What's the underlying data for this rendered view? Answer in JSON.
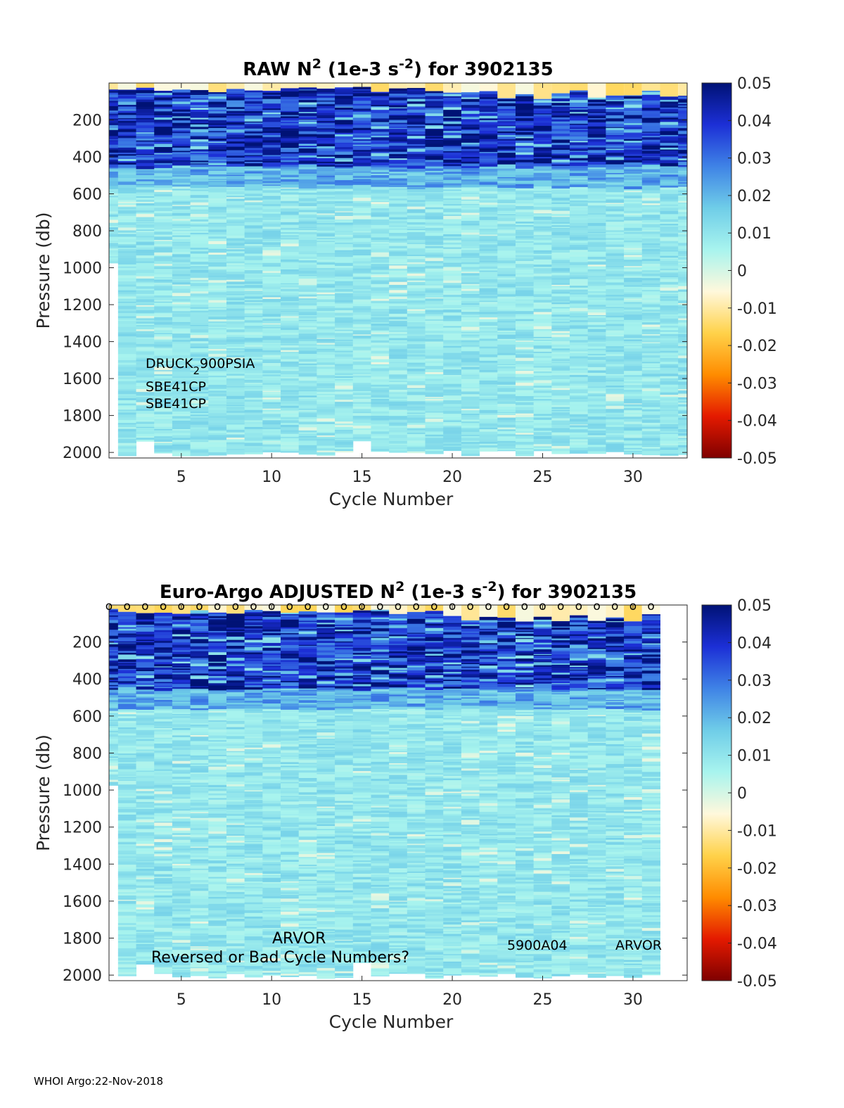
{
  "footer": "WHOI Argo:22-Nov-2018",
  "colormap": {
    "name": "jet-diverging",
    "stops": [
      "#7f0000",
      "#e41a00",
      "#ff8c00",
      "#ffd24a",
      "#fff8dc",
      "#a8f4ee",
      "#6fcde8",
      "#3f83e6",
      "#1c2fd6",
      "#001275"
    ]
  },
  "chart_data": [
    {
      "type": "heatmap",
      "id": "raw",
      "title_prefix": "RAW N",
      "title_sup": "2",
      "title_mid": " (1e-3 s",
      "title_sup2": "-2",
      "title_suffix": ") for 3902135",
      "xlabel": "Cycle Number",
      "ylabel": "Pressure (db)",
      "xlim": [
        1,
        33
      ],
      "ylim": [
        2030,
        0
      ],
      "xticks": [
        "5",
        "10",
        "15",
        "20",
        "25",
        "30"
      ],
      "yticks": [
        "200",
        "400",
        "600",
        "800",
        "1000",
        "1200",
        "1400",
        "1600",
        "1800",
        "2000"
      ],
      "cycles_last": 33,
      "colorbar": {
        "min": -0.05,
        "max": 0.05,
        "ticks": [
          "0.05",
          "0.04",
          "0.03",
          "0.02",
          "0.01",
          "0",
          "-0.01",
          "-0.02",
          "-0.03",
          "-0.04",
          "-0.05"
        ]
      },
      "annotations": [
        {
          "text": "DRUCK",
          "sub": "2",
          "after": "900PSIA"
        },
        {
          "text": "SBE41CP"
        },
        {
          "text": "SBE41CP"
        }
      ],
      "markers": []
    },
    {
      "type": "heatmap",
      "id": "adjusted",
      "title_prefix": "Euro-Argo  ADJUSTED N",
      "title_sup": "2",
      "title_mid": " (1e-3 s",
      "title_sup2": "-2",
      "title_suffix": ") for 3902135",
      "xlabel": "Cycle Number",
      "ylabel": "Pressure (db)",
      "xlim": [
        1,
        33
      ],
      "ylim": [
        2030,
        0
      ],
      "xticks": [
        "5",
        "10",
        "15",
        "20",
        "25",
        "30"
      ],
      "yticks": [
        "200",
        "400",
        "600",
        "800",
        "1000",
        "1200",
        "1400",
        "1600",
        "1800",
        "2000"
      ],
      "cycles_last": 31,
      "colorbar": {
        "min": -0.05,
        "max": 0.05,
        "ticks": [
          "0.05",
          "0.04",
          "0.03",
          "0.02",
          "0.01",
          "0",
          "-0.01",
          "-0.02",
          "-0.03",
          "-0.04",
          "-0.05"
        ]
      },
      "annotations": [
        {
          "text": "ARVOR"
        },
        {
          "text": "Reversed or Bad Cycle Numbers?"
        },
        {
          "text": "5900A04"
        },
        {
          "text": "ARVOR"
        }
      ],
      "markers": [
        "o",
        "o",
        "o",
        "o",
        "o",
        "o",
        "o",
        "o",
        "o",
        "o",
        "o",
        "o",
        "o",
        "o",
        "o",
        "o",
        "o",
        "o",
        "o",
        "o",
        "o",
        "o",
        "o",
        "o",
        "o",
        "o",
        "o",
        "o",
        "o",
        "o",
        "o"
      ]
    }
  ]
}
